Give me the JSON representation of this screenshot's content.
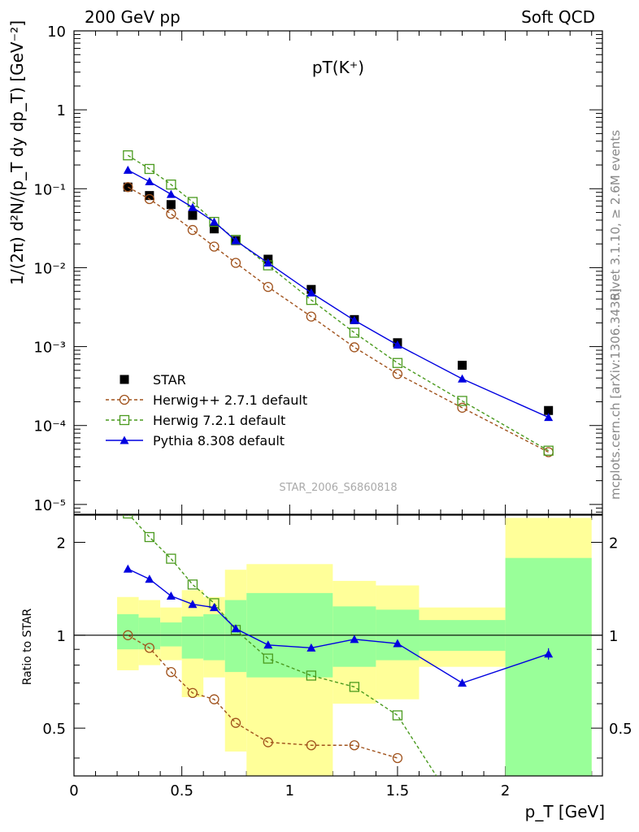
{
  "header": {
    "left": "200 GeV pp",
    "right": "Soft QCD"
  },
  "side": {
    "rivet": "Rivet 3.1.10, ≥ 2.6M events",
    "mcplots": "mcplots.cern.ch [arXiv:1306.3436]"
  },
  "chart_data": [
    {
      "type": "scatter",
      "title": "pT(K⁺)",
      "watermark": "STAR_2006_S6860818",
      "ylabel": "1/(2π) d²N/(p_T dy dp_T) [GeV⁻²]",
      "y_scale": "log",
      "ylim": [
        7.5e-06,
        10
      ],
      "xlim": [
        0,
        2.45
      ],
      "y_ticks": [
        "10",
        "1",
        "10⁻¹",
        "10⁻²",
        "10⁻³",
        "10⁻⁴",
        "10⁻⁵"
      ],
      "legend_position": "bottom-left",
      "x": [
        0.25,
        0.35,
        0.45,
        0.55,
        0.65,
        0.75,
        0.9,
        1.1,
        1.3,
        1.5,
        1.8,
        2.2
      ],
      "series": [
        {
          "name": "STAR",
          "color": "#000000",
          "marker": "square-filled",
          "line": "none",
          "values": [
            0.105,
            0.082,
            0.063,
            0.046,
            0.031,
            0.022,
            0.0128,
            0.0053,
            0.0022,
            0.00112,
            0.00058,
            0.000155
          ]
        },
        {
          "name": "Herwig++ 2.7.1 default",
          "color": "#a0521c",
          "marker": "circle-open",
          "line": "dashed",
          "values": [
            0.105,
            0.074,
            0.048,
            0.03,
            0.0185,
            0.0115,
            0.0057,
            0.0024,
            0.00098,
            0.00045,
            0.000168,
            4.6e-05
          ]
        },
        {
          "name": "Herwig 7.2.1 default",
          "color": "#4a9a1e",
          "marker": "square-open",
          "line": "dashed",
          "values": [
            0.265,
            0.178,
            0.113,
            0.068,
            0.038,
            0.0225,
            0.0107,
            0.0039,
            0.0015,
            0.00062,
            0.000205,
            4.8e-05
          ]
        },
        {
          "name": "Pythia 8.308 default",
          "color": "#0000e0",
          "marker": "triangle-filled",
          "line": "solid",
          "values": [
            0.172,
            0.123,
            0.085,
            0.058,
            0.038,
            0.022,
            0.0115,
            0.0048,
            0.00215,
            0.00105,
            0.00039,
            0.000127
          ]
        }
      ]
    },
    {
      "type": "scatter",
      "ylabel": "Ratio to STAR",
      "xlabel": "p_T [GeV]",
      "y_scale": "log",
      "ylim": [
        0.35,
        2.45
      ],
      "xlim": [
        0,
        2.45
      ],
      "y_ticks": [
        "0.5",
        "1",
        "2"
      ],
      "x_ticks": [
        "0",
        "0.5",
        "1",
        "1.5",
        "2"
      ],
      "reference_line": 1,
      "uncertainty_bins": [
        {
          "x": [
            0.2,
            0.3
          ],
          "inner": [
            0.9,
            1.17
          ],
          "outer": [
            0.77,
            1.33
          ]
        },
        {
          "x": [
            0.3,
            0.4
          ],
          "inner": [
            0.9,
            1.14
          ],
          "outer": [
            0.8,
            1.3
          ]
        },
        {
          "x": [
            0.4,
            0.5
          ],
          "inner": [
            0.92,
            1.1
          ],
          "outer": [
            0.83,
            1.23
          ]
        },
        {
          "x": [
            0.5,
            0.6
          ],
          "inner": [
            0.84,
            1.15
          ],
          "outer": [
            0.63,
            1.4
          ]
        },
        {
          "x": [
            0.6,
            0.7
          ],
          "inner": [
            0.83,
            1.17
          ],
          "outer": [
            0.73,
            1.33
          ]
        },
        {
          "x": [
            0.7,
            0.8
          ],
          "inner": [
            0.76,
            1.3
          ],
          "outer": [
            0.42,
            1.63
          ]
        },
        {
          "x": [
            0.8,
            1.2
          ],
          "inner": [
            0.73,
            1.37
          ],
          "outer": [
            0.35,
            1.7
          ]
        },
        {
          "x": [
            1.2,
            1.4
          ],
          "inner": [
            0.79,
            1.24
          ],
          "outer": [
            0.6,
            1.5
          ]
        },
        {
          "x": [
            1.4,
            1.6
          ],
          "inner": [
            0.83,
            1.21
          ],
          "outer": [
            0.62,
            1.45
          ]
        },
        {
          "x": [
            1.6,
            2.0
          ],
          "inner": [
            0.89,
            1.12
          ],
          "outer": [
            0.79,
            1.23
          ]
        },
        {
          "x": [
            2.0,
            2.4
          ],
          "inner": [
            0.35,
            1.78
          ],
          "outer": [
            0.35,
            2.4
          ]
        }
      ],
      "x": [
        0.25,
        0.35,
        0.45,
        0.55,
        0.65,
        0.75,
        0.9,
        1.1,
        1.3,
        1.5,
        1.8,
        2.2
      ],
      "series": [
        {
          "name": "Herwig++ 2.7.1 default",
          "color": "#a0521c",
          "marker": "circle-open",
          "line": "dashed",
          "values": [
            1.0,
            0.91,
            0.76,
            0.65,
            0.62,
            0.52,
            0.45,
            0.44,
            0.44,
            0.4,
            null,
            null
          ]
        },
        {
          "name": "Herwig 7.2.1 default",
          "color": "#4a9a1e",
          "marker": "square-open",
          "line": "dashed",
          "values": [
            2.48,
            2.08,
            1.77,
            1.46,
            1.27,
            1.04,
            0.84,
            0.74,
            0.68,
            0.55,
            null,
            null
          ],
          "continues_to": [
            1.68,
            0.35
          ]
        },
        {
          "name": "Pythia 8.308 default",
          "color": "#0000e0",
          "marker": "triangle-filled",
          "line": "solid",
          "values": [
            1.64,
            1.52,
            1.34,
            1.26,
            1.23,
            1.05,
            0.93,
            0.91,
            0.97,
            0.94,
            0.7,
            0.87
          ]
        }
      ]
    }
  ]
}
